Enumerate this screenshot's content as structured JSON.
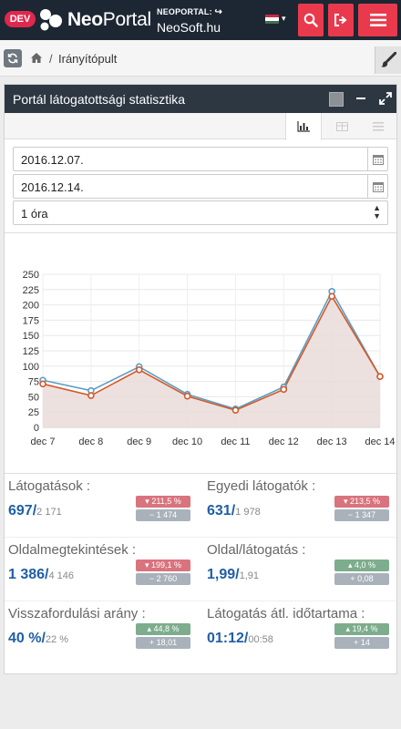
{
  "header": {
    "env_badge": "DEV",
    "logo_bold": "Neo",
    "logo_light": "Portal",
    "neoportal_label": "NEOPORTAL:",
    "site": "NeoSoft.hu",
    "flag_colors": [
      "#cd2a3e",
      "#ffffff",
      "#436f4d"
    ],
    "accent": "#e93a4d"
  },
  "breadcrumb": {
    "separator": "/",
    "current": "Irányítópult"
  },
  "widget": {
    "title": "Portál látogatottsági statisztika",
    "date_from": "2016.12.07.",
    "date_to": "2016.12.14.",
    "interval": "1 óra"
  },
  "chart_data": {
    "type": "line",
    "categories": [
      "dec 7",
      "dec 8",
      "dec 9",
      "dec 10",
      "dec 11",
      "dec 12",
      "dec 13",
      "dec 14"
    ],
    "ylim": [
      0,
      250
    ],
    "yticks": [
      0,
      25,
      50,
      75,
      100,
      125,
      150,
      175,
      200,
      225,
      250
    ],
    "grid": true,
    "series": [
      {
        "values": [
          77,
          60,
          99,
          54,
          30,
          66,
          222,
          83
        ],
        "color": "#5b9ec2"
      },
      {
        "values": [
          71,
          52,
          94,
          51,
          28,
          62,
          214,
          83
        ],
        "color": "#d4592a",
        "fill": "#e9dcd8"
      }
    ]
  },
  "stats": [
    {
      "label": "Látogatások :",
      "value": "697",
      "prev": "2 171",
      "pct": "211,5 %",
      "diff": "− 1 474",
      "trend": "down"
    },
    {
      "label": "Egyedi látogatók :",
      "value": "631",
      "prev": "1 978",
      "pct": "213,5 %",
      "diff": "− 1 347",
      "trend": "down"
    },
    {
      "label": "Oldalmegtekintések :",
      "value": "1 386",
      "prev": "4 146",
      "pct": "199,1 %",
      "diff": "− 2 760",
      "trend": "down"
    },
    {
      "label": "Oldal/látogatás :",
      "value": "1,99",
      "prev": "1,91",
      "pct": "4,0 %",
      "diff": "+ 0,08",
      "trend": "up"
    },
    {
      "label": "Visszafordulási arány :",
      "value": "40 %",
      "prev": "22 %",
      "pct": "44,8 %",
      "diff": "+ 18,01",
      "trend": "up"
    },
    {
      "label": "Látogatás átl. időtartama :",
      "value": "01:12",
      "prev": "00:58",
      "pct": "19,4 %",
      "diff": "+ 14",
      "trend": "up"
    }
  ]
}
